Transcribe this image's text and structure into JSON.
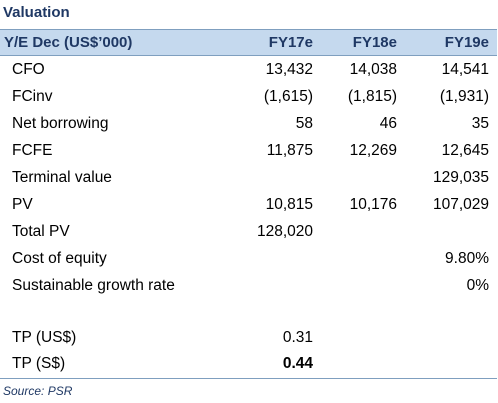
{
  "title": "Valuation",
  "header": {
    "label": "Y/E Dec (US$’000)",
    "cols": [
      "FY17e",
      "FY18e",
      "FY19e"
    ]
  },
  "rows": [
    {
      "label": "CFO",
      "v": [
        "13,432",
        "14,038",
        "14,541"
      ]
    },
    {
      "label": "FCinv",
      "v": [
        "(1,615)",
        "(1,815)",
        "(1,931)"
      ]
    },
    {
      "label": "Net borrowing",
      "v": [
        "58",
        "46",
        "35"
      ]
    },
    {
      "label": "FCFE",
      "v": [
        "11,875",
        "12,269",
        "12,645"
      ]
    },
    {
      "label": "Terminal value",
      "v": [
        "",
        "",
        "129,035"
      ]
    },
    {
      "label": "PV",
      "v": [
        "10,815",
        "10,176",
        "107,029"
      ]
    },
    {
      "label": "Total PV",
      "v": [
        "128,020",
        "",
        ""
      ]
    },
    {
      "label": "Cost of equity",
      "v": [
        "",
        "",
        "9.80%"
      ]
    },
    {
      "label": "Sustainable growth rate",
      "v": [
        "",
        "",
        "0%"
      ]
    },
    {
      "label": "",
      "v": [
        "",
        "",
        ""
      ]
    },
    {
      "label": "TP (US$)",
      "v": [
        "0.31",
        "",
        ""
      ]
    },
    {
      "label": "TP (S$)",
      "v": [
        "0.44",
        "",
        ""
      ]
    }
  ],
  "source": "Source: PSR"
}
